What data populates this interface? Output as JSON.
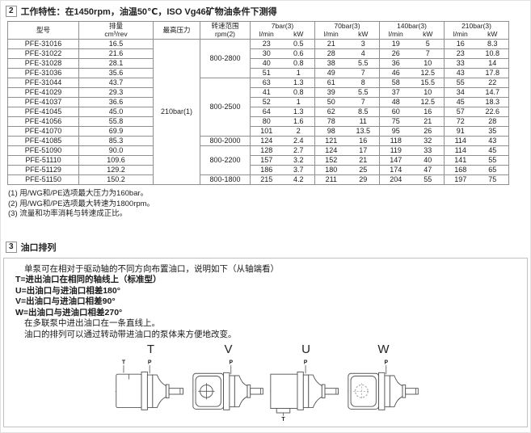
{
  "colors": {
    "table_border": "#8f8f8f",
    "box_border": "#c2c2c2",
    "text": "#1c1c1c"
  },
  "section2": {
    "number": "2",
    "title": "工作特性：在1450rpm，油温50℃，ISO Vg46矿物油条件下测得"
  },
  "table": {
    "headers": {
      "model": "型号",
      "displacement": "排量",
      "displacement_unit": "cm³/rev",
      "max_pressure": "最高压力",
      "speed_range": "转速范围",
      "speed_range_unit": "rpm(2)",
      "flow": "l/min",
      "power": "kW",
      "pressure_groups": [
        "7bar(3)",
        "70bar(3)",
        "140bar(3)",
        "210bar(3)"
      ]
    },
    "max_pressure_value": "210bar(1)",
    "speed_ranges": [
      {
        "label": "800-2800",
        "rows": 4
      },
      {
        "label": "800-2500",
        "rows": 6
      },
      {
        "label": "800-2000",
        "rows": 1
      },
      {
        "label": "800-2200",
        "rows": 3
      },
      {
        "label": "800-1800",
        "rows": 1
      }
    ],
    "rows": [
      {
        "model": "PFE-31016",
        "disp": "16.5",
        "values": [
          "23",
          "0.5",
          "21",
          "3",
          "19",
          "5",
          "16",
          "8.3"
        ]
      },
      {
        "model": "PFE-31022",
        "disp": "21.6",
        "values": [
          "30",
          "0.6",
          "28",
          "4",
          "26",
          "7",
          "23",
          "10.8"
        ]
      },
      {
        "model": "PFE-31028",
        "disp": "28.1",
        "values": [
          "40",
          "0.8",
          "38",
          "5.5",
          "36",
          "10",
          "33",
          "14"
        ]
      },
      {
        "model": "PFE-31036",
        "disp": "35.6",
        "values": [
          "51",
          "1",
          "49",
          "7",
          "46",
          "12.5",
          "43",
          "17.8"
        ]
      },
      {
        "model": "PFE-31044",
        "disp": "43.7",
        "values": [
          "63",
          "1.3",
          "61",
          "8",
          "58",
          "15.5",
          "55",
          "22"
        ]
      },
      {
        "model": "PFE-41029",
        "disp": "29.3",
        "values": [
          "41",
          "0.8",
          "39",
          "5.5",
          "37",
          "10",
          "34",
          "14.7"
        ]
      },
      {
        "model": "PFE-41037",
        "disp": "36.6",
        "values": [
          "52",
          "1",
          "50",
          "7",
          "48",
          "12.5",
          "45",
          "18.3"
        ]
      },
      {
        "model": "PFE-41045",
        "disp": "45.0",
        "values": [
          "64",
          "1.3",
          "62",
          "8.5",
          "60",
          "16",
          "57",
          "22.6"
        ]
      },
      {
        "model": "PFE-41056",
        "disp": "55.8",
        "values": [
          "80",
          "1.6",
          "78",
          "11",
          "75",
          "21",
          "72",
          "28"
        ]
      },
      {
        "model": "PFE-41070",
        "disp": "69.9",
        "values": [
          "101",
          "2",
          "98",
          "13.5",
          "95",
          "26",
          "91",
          "35"
        ]
      },
      {
        "model": "PFE-41085",
        "disp": "85.3",
        "values": [
          "124",
          "2.4",
          "121",
          "16",
          "118",
          "32",
          "114",
          "43"
        ]
      },
      {
        "model": "PFE-51090",
        "disp": "90.0",
        "values": [
          "128",
          "2.7",
          "124",
          "17",
          "119",
          "33",
          "114",
          "45"
        ]
      },
      {
        "model": "PFE-51110",
        "disp": "109.6",
        "values": [
          "157",
          "3.2",
          "152",
          "21",
          "147",
          "40",
          "141",
          "55"
        ]
      },
      {
        "model": "PFE-51129",
        "disp": "129.2",
        "values": [
          "186",
          "3.7",
          "180",
          "25",
          "174",
          "47",
          "168",
          "65"
        ]
      },
      {
        "model": "PFE-51150",
        "disp": "150.2",
        "values": [
          "215",
          "4.2",
          "211",
          "29",
          "204",
          "55",
          "197",
          "75"
        ]
      }
    ]
  },
  "footnotes": [
    "(1) 用/WG和/PE选项最大压力为160bar。",
    "(2) 用/WG和/PE选项最大转速为1800rpm。",
    "(3) 流量和功率消耗与转速成正比。"
  ],
  "section3": {
    "number": "3",
    "title": "油口排列",
    "lines": [
      "单泵可在相对于驱动轴的不同方向布置油口，说明如下（从轴端看）",
      "T=进出油口在相同的轴线上（标准型）",
      "U=出油口与进油口相差180°",
      "V=出油口与进油口相差90°",
      "W=出油口与进油口相差270°",
      "在多联泵中进出油口在一条直线上。",
      "油口的排列可以通过转动带进油口的泵体来方便地改变。"
    ],
    "diagrams": [
      {
        "letter": "T",
        "port_left": "T",
        "port_right": "P"
      },
      {
        "letter": "V",
        "port_right": "P"
      },
      {
        "letter": "U",
        "port_right": "P",
        "port_bottom": "T"
      },
      {
        "letter": "W",
        "port_right": "P"
      }
    ]
  }
}
